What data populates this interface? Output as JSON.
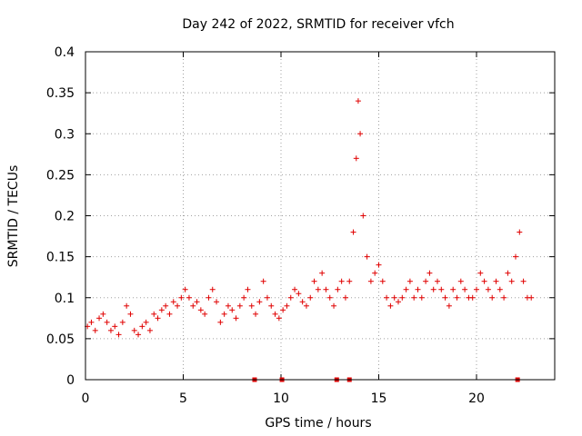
{
  "chart_data": {
    "type": "scatter",
    "title": "Day 242 of 2022, SRMTID for receiver vfch",
    "xlabel": "GPS time / hours",
    "ylabel": "SRMTID / TECUs",
    "xlim": [
      0,
      24
    ],
    "ylim": [
      0,
      0.4
    ],
    "xticks": [
      0,
      5,
      10,
      15,
      20
    ],
    "xtick_labels": [
      "0",
      "5",
      "10",
      "15",
      "20"
    ],
    "yticks": [
      0,
      0.05,
      0.1,
      0.15,
      0.2,
      0.25,
      0.3,
      0.35,
      0.4
    ],
    "ytick_labels": [
      "0",
      "0.05",
      "0.1",
      "0.15",
      "0.2",
      "0.25",
      "0.3",
      "0.35",
      "0.4"
    ],
    "grid": true,
    "marker": "plus",
    "color": "#e00000",
    "series": [
      {
        "name": "SRMTID",
        "x": [
          0.1,
          0.3,
          0.5,
          0.7,
          0.9,
          1.1,
          1.3,
          1.5,
          1.7,
          1.9,
          2.1,
          2.3,
          2.5,
          2.7,
          2.9,
          3.1,
          3.3,
          3.5,
          3.7,
          3.9,
          4.1,
          4.3,
          4.5,
          4.7,
          4.9,
          5.1,
          5.3,
          5.5,
          5.7,
          5.9,
          6.1,
          6.3,
          6.5,
          6.7,
          6.9,
          7.1,
          7.3,
          7.5,
          7.7,
          7.9,
          8.1,
          8.3,
          8.5,
          8.7,
          8.9,
          9.1,
          9.3,
          9.5,
          9.7,
          9.9,
          10.1,
          10.3,
          10.5,
          10.7,
          10.9,
          11.1,
          11.3,
          11.5,
          11.7,
          11.9,
          12.1,
          12.3,
          12.5,
          12.7,
          12.9,
          13.1,
          13.3,
          13.5,
          13.7,
          13.85,
          13.95,
          14.05,
          14.2,
          14.4,
          14.6,
          14.8,
          15.0,
          15.2,
          15.4,
          15.6,
          15.8,
          16.0,
          16.2,
          16.4,
          16.6,
          16.8,
          17.0,
          17.2,
          17.4,
          17.6,
          17.8,
          18.0,
          18.2,
          18.4,
          18.6,
          18.8,
          19.0,
          19.2,
          19.4,
          19.6,
          19.8,
          20.0,
          20.2,
          20.4,
          20.6,
          20.8,
          21.0,
          21.2,
          21.4,
          21.6,
          21.8,
          22.0,
          22.2,
          22.4,
          22.6,
          22.8
        ],
        "y": [
          0.065,
          0.07,
          0.06,
          0.075,
          0.08,
          0.07,
          0.06,
          0.065,
          0.055,
          0.07,
          0.09,
          0.08,
          0.06,
          0.055,
          0.065,
          0.07,
          0.06,
          0.08,
          0.075,
          0.085,
          0.09,
          0.08,
          0.095,
          0.09,
          0.1,
          0.11,
          0.1,
          0.09,
          0.095,
          0.085,
          0.08,
          0.1,
          0.11,
          0.095,
          0.07,
          0.08,
          0.09,
          0.085,
          0.075,
          0.09,
          0.1,
          0.11,
          0.09,
          0.08,
          0.095,
          0.12,
          0.1,
          0.09,
          0.08,
          0.075,
          0.085,
          0.09,
          0.1,
          0.11,
          0.105,
          0.095,
          0.09,
          0.1,
          0.12,
          0.11,
          0.13,
          0.11,
          0.1,
          0.09,
          0.11,
          0.12,
          0.1,
          0.12,
          0.18,
          0.27,
          0.34,
          0.3,
          0.2,
          0.15,
          0.12,
          0.13,
          0.14,
          0.12,
          0.1,
          0.09,
          0.1,
          0.095,
          0.1,
          0.11,
          0.12,
          0.1,
          0.11,
          0.1,
          0.12,
          0.13,
          0.11,
          0.12,
          0.11,
          0.1,
          0.09,
          0.11,
          0.1,
          0.12,
          0.11,
          0.1,
          0.1,
          0.11,
          0.13,
          0.12,
          0.11,
          0.1,
          0.12,
          0.11,
          0.1,
          0.13,
          0.12,
          0.15,
          0.18,
          0.12,
          0.1,
          0.1
        ]
      }
    ],
    "data_gaps_x": [
      8.65,
      10.05,
      12.85,
      13.5,
      22.1
    ]
  }
}
